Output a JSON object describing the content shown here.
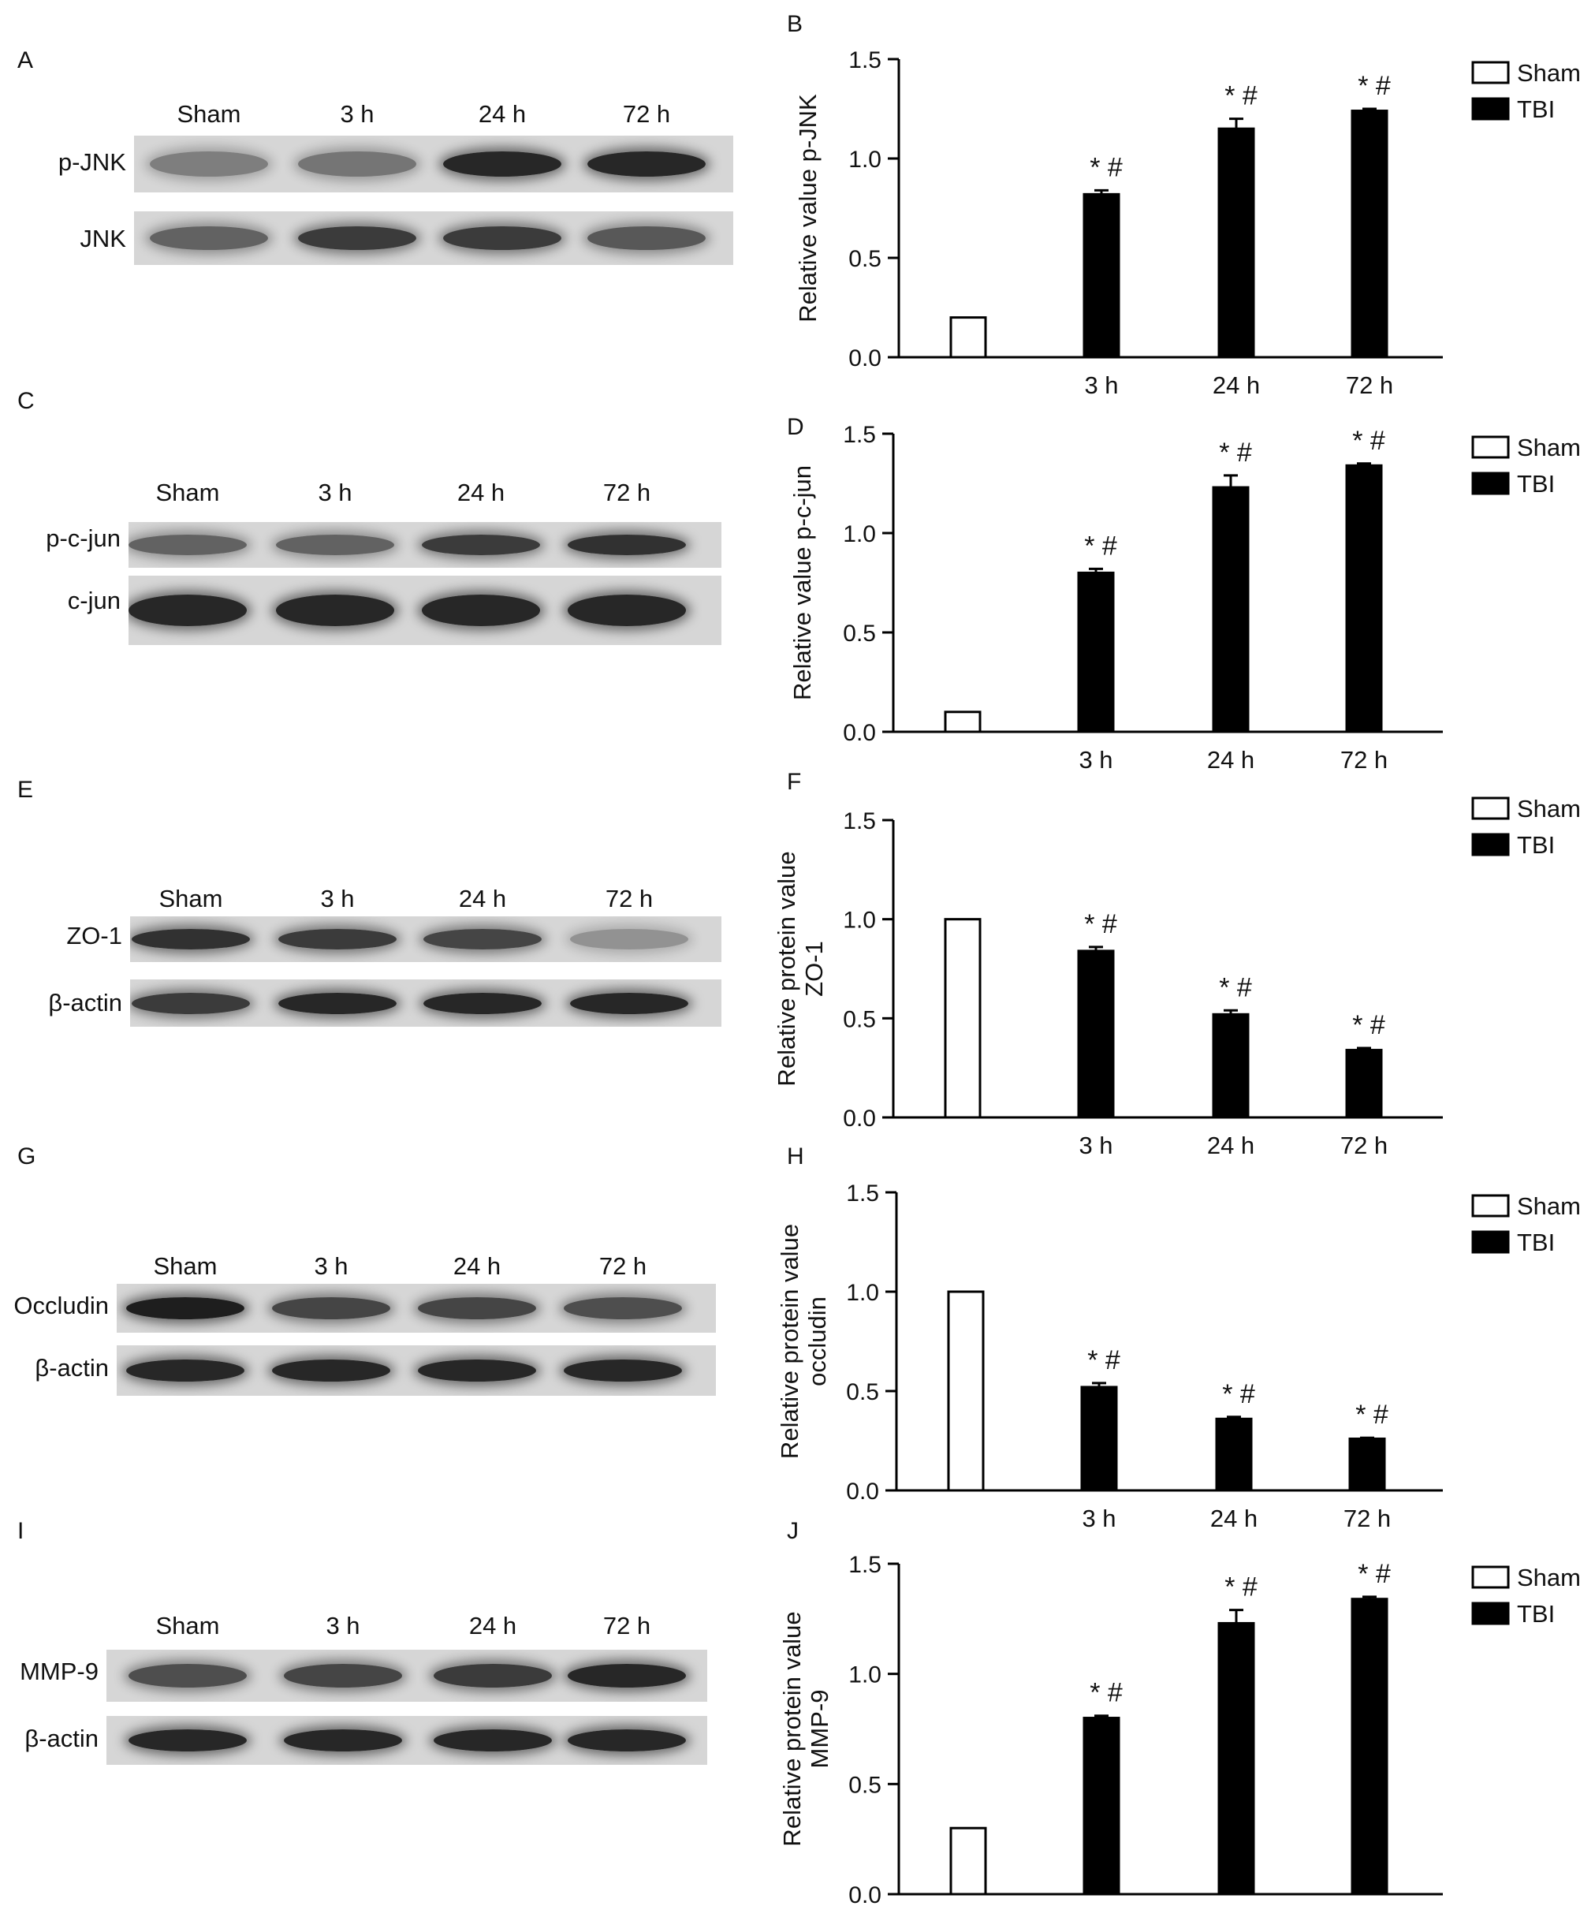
{
  "panels": [
    {
      "blot_letter": "A",
      "chart_letter": "B",
      "lanes": [
        "Sham",
        "3 h",
        "24 h",
        "72 h"
      ],
      "proteins": [
        "p-JNK",
        "JNK"
      ],
      "ylabel_lines": [
        "Relative value p-JNK"
      ]
    },
    {
      "blot_letter": "C",
      "chart_letter": "D",
      "lanes": [
        "Sham",
        "3 h",
        "24 h",
        "72 h"
      ],
      "proteins": [
        "p-c-jun",
        "c-jun"
      ],
      "ylabel_lines": [
        "Relative value p-c-jun"
      ]
    },
    {
      "blot_letter": "E",
      "chart_letter": "F",
      "lanes": [
        "Sham",
        "3 h",
        "24 h",
        "72 h"
      ],
      "proteins": [
        "ZO-1",
        "β-actin"
      ],
      "ylabel_lines": [
        "Relative protein value",
        "ZO-1"
      ]
    },
    {
      "blot_letter": "G",
      "chart_letter": "H",
      "lanes": [
        "Sham",
        "3 h",
        "24 h",
        "72 h"
      ],
      "proteins": [
        "Occludin",
        "β-actin"
      ],
      "ylabel_lines": [
        "Relative protein value",
        "occludin"
      ]
    },
    {
      "blot_letter": "I",
      "chart_letter": "J",
      "lanes": [
        "Sham",
        "3 h",
        "24 h",
        "72 h"
      ],
      "proteins": [
        "MMP-9",
        "β-actin"
      ],
      "ylabel_lines": [
        "Relative protein value",
        "MMP-9"
      ]
    }
  ],
  "legend": {
    "sham": "Sham",
    "tbi": "TBI"
  },
  "colors": {
    "sham_fill": "#ffffff",
    "tbi_fill": "#000000",
    "axis": "#000000"
  },
  "chart_data": [
    {
      "type": "bar",
      "panel": "B",
      "categories": [
        "",
        "3 h",
        "24 h",
        "72 h"
      ],
      "tick_labels": [
        "0.0",
        "0.5",
        "1.0",
        "1.5"
      ],
      "series": [
        {
          "name": "Sham",
          "values": [
            0.2,
            null,
            null,
            null
          ]
        },
        {
          "name": "TBI",
          "values": [
            null,
            0.82,
            1.15,
            1.24
          ]
        }
      ],
      "errors": [
        0,
        0.02,
        0.05,
        0.01
      ],
      "annotations": [
        "",
        "* #",
        "* #",
        "* #"
      ],
      "ylabel": "Relative value p-JNK",
      "ylim": [
        0,
        1.5
      ],
      "legend": "top-right"
    },
    {
      "type": "bar",
      "panel": "D",
      "categories": [
        "",
        "3 h",
        "24 h",
        "72 h"
      ],
      "tick_labels": [
        "0.0",
        "0.5",
        "1.0",
        "1.5"
      ],
      "series": [
        {
          "name": "Sham",
          "values": [
            0.1,
            null,
            null,
            null
          ]
        },
        {
          "name": "TBI",
          "values": [
            null,
            0.8,
            1.23,
            1.34
          ]
        }
      ],
      "errors": [
        0,
        0.02,
        0.06,
        0.01
      ],
      "annotations": [
        "",
        "* #",
        "* #",
        "* #"
      ],
      "ylabel": "Relative value p-c-jun",
      "ylim": [
        0,
        1.5
      ],
      "legend": "top-right"
    },
    {
      "type": "bar",
      "panel": "F",
      "categories": [
        "",
        "3 h",
        "24 h",
        "72 h"
      ],
      "tick_labels": [
        "0.0",
        "0.5",
        "1.0",
        "1.5"
      ],
      "series": [
        {
          "name": "Sham",
          "values": [
            1.0,
            null,
            null,
            null
          ]
        },
        {
          "name": "TBI",
          "values": [
            null,
            0.84,
            0.52,
            0.34
          ]
        }
      ],
      "errors": [
        0,
        0.02,
        0.02,
        0.01
      ],
      "annotations": [
        "",
        "* #",
        "* #",
        "* #"
      ],
      "ylabel": "Relative protein value ZO-1",
      "ylim": [
        0,
        1.5
      ],
      "legend": "top-right"
    },
    {
      "type": "bar",
      "panel": "H",
      "categories": [
        "",
        "3 h",
        "24 h",
        "72 h"
      ],
      "tick_labels": [
        "0.0",
        "0.5",
        "1.0",
        "1.5"
      ],
      "series": [
        {
          "name": "Sham",
          "values": [
            1.0,
            null,
            null,
            null
          ]
        },
        {
          "name": "TBI",
          "values": [
            null,
            0.52,
            0.36,
            0.26
          ]
        }
      ],
      "errors": [
        0,
        0.02,
        0.01,
        0.005
      ],
      "annotations": [
        "",
        "* #",
        "* #",
        "* #"
      ],
      "ylabel": "Relative protein value occludin",
      "ylim": [
        0,
        1.5
      ],
      "legend": "top-right"
    },
    {
      "type": "bar",
      "panel": "J",
      "categories": [
        "",
        "3 h",
        "24 h",
        "72 h"
      ],
      "tick_labels": [
        "0.0",
        "0.5",
        "1.0",
        "1.5"
      ],
      "series": [
        {
          "name": "Sham",
          "values": [
            0.3,
            null,
            null,
            null
          ]
        },
        {
          "name": "TBI",
          "values": [
            null,
            0.8,
            1.23,
            1.34
          ]
        }
      ],
      "errors": [
        0,
        0.01,
        0.06,
        0.01
      ],
      "annotations": [
        "",
        "* #",
        "* #",
        "* #"
      ],
      "ylabel": "Relative protein value MMP-9",
      "ylim": [
        0,
        1.5
      ],
      "legend": "top-right"
    }
  ]
}
